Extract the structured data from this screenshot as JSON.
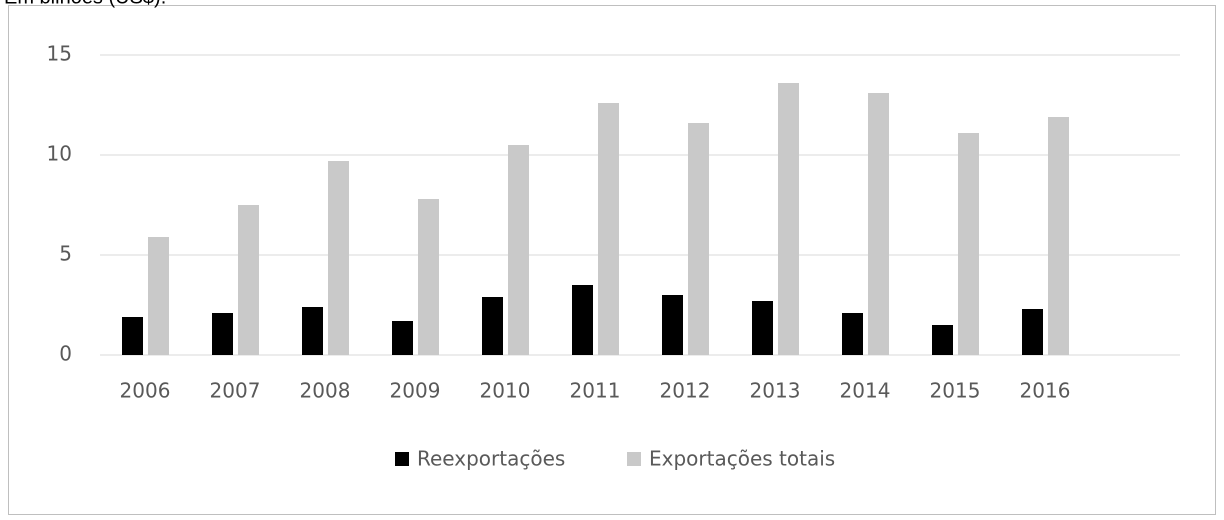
{
  "chart_data": {
    "type": "bar",
    "subtitle": "Em bilhões (US$).",
    "categories": [
      "2006",
      "2007",
      "2008",
      "2009",
      "2010",
      "2011",
      "2012",
      "2013",
      "2014",
      "2015",
      "2016",
      null
    ],
    "series": [
      {
        "name": "Reexportações",
        "color": "#000000",
        "values": [
          1.9,
          2.1,
          2.4,
          1.7,
          2.9,
          3.5,
          3.0,
          2.7,
          2.1,
          1.5,
          2.3,
          null
        ]
      },
      {
        "name": "Exportações totais",
        "color": "#c9c9c9",
        "values": [
          5.9,
          7.5,
          9.7,
          7.8,
          10.5,
          12.6,
          11.6,
          13.6,
          13.1,
          11.1,
          11.9,
          null
        ]
      }
    ],
    "ylim": [
      0,
      15
    ],
    "yticks": [
      0,
      5,
      10,
      15
    ],
    "grid": true,
    "legend": "bottom"
  }
}
